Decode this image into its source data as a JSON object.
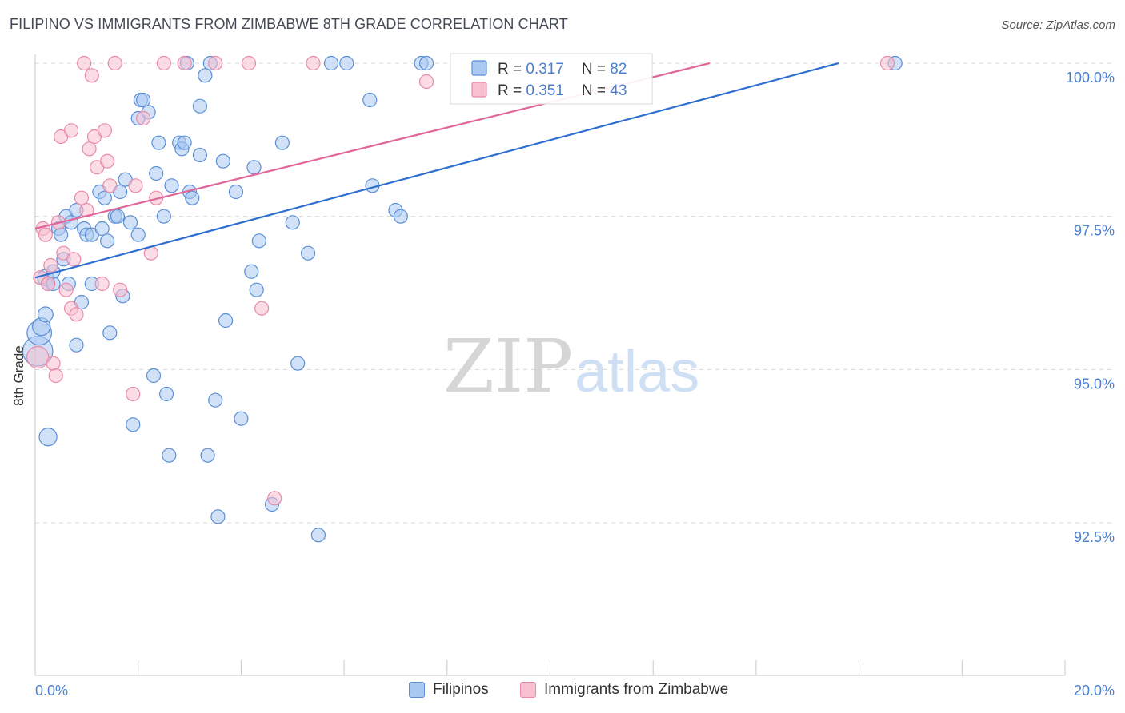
{
  "header": {
    "title": "FILIPINO VS IMMIGRANTS FROM ZIMBABWE 8TH GRADE CORRELATION CHART",
    "source": "Source: ZipAtlas.com"
  },
  "watermark": {
    "zip": "ZIP",
    "atlas": "atlas"
  },
  "colors": {
    "blue_fill": "#a9c9f2",
    "blue_stroke": "#5b8fd6",
    "blue_line": "#2f6fcf",
    "pink_fill": "#f7bfd0",
    "pink_stroke": "#e88aa8",
    "pink_line": "#e0679a",
    "tick_label": "#4a7fd0",
    "grid": "#d9d9d9"
  },
  "chart_data": {
    "type": "scatter",
    "title": "FILIPINO VS IMMIGRANTS FROM ZIMBABWE 8TH GRADE CORRELATION CHART",
    "xlabel": "",
    "ylabel": "8th Grade",
    "xlim": [
      0,
      20
    ],
    "ylim": [
      90.0,
      100.2
    ],
    "x_tick_labels": [
      "0.0%",
      "20.0%"
    ],
    "y_ticks": [
      92.5,
      95.0,
      97.5,
      100.0
    ],
    "y_tick_labels": [
      "92.5%",
      "95.0%",
      "97.5%",
      "100.0%"
    ],
    "legend_stats": [
      {
        "r_label": "R = ",
        "r_value": "0.317",
        "n_label": "N = ",
        "n_value": "82"
      },
      {
        "r_label": "R = ",
        "r_value": "0.351",
        "n_label": "N = ",
        "n_value": "43"
      }
    ],
    "series": [
      {
        "name": "Filipinos",
        "color": "#a9c9f2",
        "trend": {
          "x0": 0,
          "y0": 96.5,
          "x1": 15.6,
          "y1": 100.0
        },
        "points": [
          [
            0.05,
            95.3,
            2.2
          ],
          [
            0.08,
            95.6,
            1.8
          ],
          [
            0.12,
            95.7,
            1.3
          ],
          [
            0.2,
            96.5,
            1.2
          ],
          [
            0.2,
            95.9,
            1.1
          ],
          [
            0.25,
            96.4,
            1.0
          ],
          [
            0.35,
            96.4,
            1.0
          ],
          [
            0.35,
            96.6,
            1.0
          ],
          [
            0.45,
            97.3,
            1.0
          ],
          [
            0.5,
            97.2,
            1.0
          ],
          [
            0.55,
            96.8,
            1.0
          ],
          [
            0.6,
            97.5,
            1.0
          ],
          [
            0.65,
            96.4,
            1.0
          ],
          [
            0.7,
            97.4,
            1.0
          ],
          [
            0.8,
            97.6,
            1.0
          ],
          [
            0.8,
            95.4,
            1.0
          ],
          [
            0.9,
            96.1,
            1.0
          ],
          [
            0.95,
            97.3,
            1.0
          ],
          [
            1.0,
            97.2,
            1.0
          ],
          [
            1.1,
            97.2,
            1.0
          ],
          [
            1.1,
            96.4,
            1.0
          ],
          [
            1.25,
            97.9,
            1.0
          ],
          [
            1.3,
            97.3,
            1.0
          ],
          [
            1.35,
            97.8,
            1.0
          ],
          [
            1.4,
            97.1,
            1.0
          ],
          [
            1.45,
            95.6,
            1.0
          ],
          [
            1.55,
            97.5,
            1.0
          ],
          [
            1.6,
            97.5,
            1.0
          ],
          [
            1.65,
            97.9,
            1.0
          ],
          [
            1.7,
            96.2,
            1.0
          ],
          [
            1.75,
            98.1,
            1.0
          ],
          [
            1.85,
            97.4,
            1.0
          ],
          [
            1.9,
            94.1,
            1.0
          ],
          [
            2.0,
            97.2,
            1.0
          ],
          [
            2.0,
            99.1,
            1.0
          ],
          [
            2.05,
            99.4,
            1.0
          ],
          [
            2.1,
            99.4,
            1.0
          ],
          [
            2.2,
            99.2,
            1.0
          ],
          [
            2.3,
            94.9,
            1.0
          ],
          [
            2.35,
            98.2,
            1.0
          ],
          [
            2.4,
            98.7,
            1.0
          ],
          [
            2.5,
            97.5,
            1.0
          ],
          [
            2.55,
            94.6,
            1.0
          ],
          [
            2.6,
            93.6,
            1.0
          ],
          [
            2.65,
            98.0,
            1.0
          ],
          [
            2.8,
            98.7,
            1.0
          ],
          [
            2.85,
            98.6,
            1.0
          ],
          [
            2.9,
            98.7,
            1.0
          ],
          [
            2.95,
            100.0,
            1.0
          ],
          [
            3.0,
            97.9,
            1.0
          ],
          [
            3.05,
            97.8,
            1.0
          ],
          [
            3.2,
            99.3,
            1.0
          ],
          [
            3.2,
            98.5,
            1.0
          ],
          [
            3.3,
            99.8,
            1.0
          ],
          [
            3.35,
            93.6,
            1.0
          ],
          [
            3.4,
            100.0,
            1.0
          ],
          [
            3.5,
            94.5,
            1.0
          ],
          [
            3.55,
            92.6,
            1.0
          ],
          [
            3.65,
            98.4,
            1.0
          ],
          [
            3.7,
            95.8,
            1.0
          ],
          [
            3.9,
            97.9,
            1.0
          ],
          [
            4.0,
            94.2,
            1.0
          ],
          [
            4.2,
            96.6,
            1.0
          ],
          [
            4.25,
            98.3,
            1.0
          ],
          [
            4.3,
            96.3,
            1.0
          ],
          [
            4.35,
            97.1,
            1.0
          ],
          [
            4.6,
            92.8,
            1.0
          ],
          [
            4.8,
            98.7,
            1.0
          ],
          [
            5.0,
            97.4,
            1.0
          ],
          [
            5.1,
            95.1,
            1.0
          ],
          [
            5.3,
            96.9,
            1.0
          ],
          [
            5.5,
            92.3,
            1.0
          ],
          [
            5.75,
            100.0,
            1.0
          ],
          [
            6.05,
            100.0,
            1.0
          ],
          [
            6.5,
            99.4,
            1.0
          ],
          [
            6.55,
            98.0,
            1.0
          ],
          [
            7.0,
            97.6,
            1.0
          ],
          [
            7.1,
            97.5,
            1.0
          ],
          [
            7.5,
            100.0,
            1.0
          ],
          [
            7.6,
            100.0,
            1.0
          ],
          [
            0.25,
            93.9,
            1.3
          ],
          [
            16.7,
            100.0,
            1.0
          ]
        ]
      },
      {
        "name": "Immigrants from Zimbabwe",
        "color": "#f7bfd0",
        "trend": {
          "x0": 0,
          "y0": 97.3,
          "x1": 13.1,
          "y1": 100.0
        },
        "points": [
          [
            0.05,
            95.2,
            1.6
          ],
          [
            0.1,
            96.5,
            1.0
          ],
          [
            0.15,
            97.3,
            1.0
          ],
          [
            0.2,
            97.2,
            1.0
          ],
          [
            0.25,
            96.4,
            1.0
          ],
          [
            0.3,
            96.7,
            1.0
          ],
          [
            0.35,
            95.1,
            1.0
          ],
          [
            0.4,
            94.9,
            1.0
          ],
          [
            0.45,
            97.4,
            1.0
          ],
          [
            0.5,
            98.8,
            1.0
          ],
          [
            0.55,
            96.9,
            1.0
          ],
          [
            0.6,
            96.3,
            1.0
          ],
          [
            0.7,
            96.0,
            1.0
          ],
          [
            0.7,
            98.9,
            1.0
          ],
          [
            0.75,
            96.8,
            1.0
          ],
          [
            0.8,
            95.9,
            1.0
          ],
          [
            0.9,
            97.8,
            1.0
          ],
          [
            0.95,
            100.0,
            1.0
          ],
          [
            1.0,
            97.6,
            1.0
          ],
          [
            1.05,
            98.6,
            1.0
          ],
          [
            1.1,
            99.8,
            1.0
          ],
          [
            1.15,
            98.8,
            1.0
          ],
          [
            1.2,
            98.3,
            1.0
          ],
          [
            1.3,
            96.4,
            1.0
          ],
          [
            1.35,
            98.9,
            1.0
          ],
          [
            1.4,
            98.4,
            1.0
          ],
          [
            1.45,
            98.0,
            1.0
          ],
          [
            1.55,
            100.0,
            1.0
          ],
          [
            1.65,
            96.3,
            1.0
          ],
          [
            1.9,
            94.6,
            1.0
          ],
          [
            1.95,
            98.0,
            1.0
          ],
          [
            2.1,
            99.1,
            1.0
          ],
          [
            2.25,
            96.9,
            1.0
          ],
          [
            2.35,
            97.8,
            1.0
          ],
          [
            2.5,
            100.0,
            1.0
          ],
          [
            2.9,
            100.0,
            1.0
          ],
          [
            3.5,
            100.0,
            1.0
          ],
          [
            4.15,
            100.0,
            1.0
          ],
          [
            4.4,
            96.0,
            1.0
          ],
          [
            4.65,
            92.9,
            1.0
          ],
          [
            5.4,
            100.0,
            1.0
          ],
          [
            7.6,
            99.7,
            1.0
          ],
          [
            16.55,
            100.0,
            1.0
          ]
        ]
      }
    ]
  }
}
